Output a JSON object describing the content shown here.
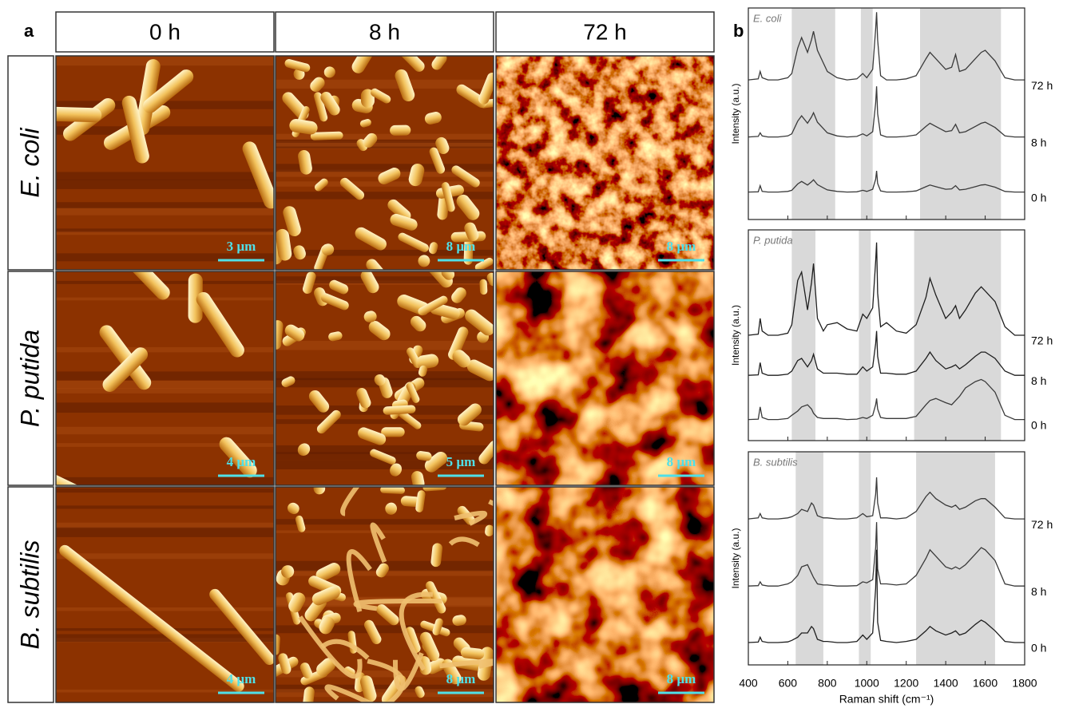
{
  "panel_a": {
    "label": "a",
    "columns": [
      "0 h",
      "8 h",
      "72 h"
    ],
    "rows": [
      {
        "name": "E. coli",
        "scale_bars": [
          "3 µm",
          "8 µm",
          "8 µm"
        ]
      },
      {
        "name": "P. putida",
        "scale_bars": [
          "4 µm",
          "5 µm",
          "8 µm"
        ]
      },
      {
        "name": "B. subtilis",
        "scale_bars": [
          "4 µm",
          "8 µm",
          "8 µm"
        ]
      }
    ]
  },
  "panel_b_label": "b",
  "chart_data": [
    {
      "type": "line",
      "title": "E. coli",
      "ylabel": "Intensity (a.u.)",
      "x": [
        400,
        450,
        460,
        470,
        500,
        550,
        600,
        620,
        650,
        670,
        700,
        720,
        730,
        750,
        780,
        800,
        850,
        900,
        950,
        980,
        1000,
        1030,
        1045,
        1050,
        1055,
        1070,
        1100,
        1150,
        1200,
        1250,
        1300,
        1320,
        1350,
        1400,
        1430,
        1450,
        1470,
        1500,
        1550,
        1580,
        1600,
        1650,
        1700,
        1750,
        1800
      ],
      "xlim": [
        400,
        1800
      ],
      "xticks": [
        400,
        600,
        800,
        1000,
        1200,
        1400,
        1600,
        1800
      ],
      "xtick_labels": false,
      "ylim": [
        0,
        10
      ],
      "shaded_ranges": [
        [
          620,
          840
        ],
        [
          970,
          1030
        ],
        [
          1270,
          1680
        ]
      ],
      "series": [
        {
          "name": "72 h",
          "color": "#3a3a3a",
          "values": [
            6.6,
            6.65,
            7.0,
            6.7,
            6.6,
            6.6,
            6.7,
            6.9,
            8.1,
            8.6,
            7.9,
            8.5,
            8.9,
            8.0,
            7.4,
            7.0,
            6.7,
            6.6,
            6.65,
            6.9,
            6.7,
            7.1,
            9.0,
            9.8,
            8.5,
            6.8,
            6.6,
            6.6,
            6.65,
            6.8,
            7.6,
            7.9,
            7.6,
            7.1,
            7.2,
            7.8,
            7.0,
            7.1,
            7.6,
            7.9,
            8.0,
            7.5,
            6.7,
            6.6,
            6.6
          ]
        },
        {
          "name": "8 h",
          "color": "#3a3a3a",
          "values": [
            3.9,
            3.93,
            4.1,
            3.95,
            3.9,
            3.9,
            3.95,
            4.05,
            4.65,
            4.9,
            4.55,
            4.85,
            5.05,
            4.6,
            4.3,
            4.1,
            3.95,
            3.9,
            3.93,
            4.05,
            3.95,
            4.15,
            5.5,
            6.3,
            5.0,
            4.0,
            3.9,
            3.9,
            3.93,
            4.0,
            4.4,
            4.55,
            4.4,
            4.15,
            4.2,
            4.5,
            4.1,
            4.15,
            4.4,
            4.55,
            4.6,
            4.35,
            3.95,
            3.9,
            3.9
          ]
        },
        {
          "name": "0 h",
          "color": "#3a3a3a",
          "values": [
            1.3,
            1.31,
            1.6,
            1.33,
            1.3,
            1.3,
            1.33,
            1.38,
            1.68,
            1.8,
            1.63,
            1.78,
            1.88,
            1.65,
            1.5,
            1.4,
            1.33,
            1.3,
            1.31,
            1.38,
            1.33,
            1.43,
            1.9,
            2.3,
            1.7,
            1.35,
            1.3,
            1.3,
            1.31,
            1.35,
            1.55,
            1.63,
            1.55,
            1.43,
            1.45,
            1.6,
            1.4,
            1.43,
            1.55,
            1.63,
            1.65,
            1.53,
            1.33,
            1.3,
            1.3
          ]
        }
      ]
    },
    {
      "type": "line",
      "title": "P. putida",
      "ylabel": "Intensity (a.u.)",
      "x": [
        400,
        450,
        460,
        470,
        500,
        550,
        600,
        620,
        650,
        670,
        700,
        720,
        730,
        750,
        780,
        800,
        850,
        900,
        950,
        980,
        1000,
        1030,
        1045,
        1050,
        1055,
        1070,
        1100,
        1150,
        1200,
        1250,
        1300,
        1320,
        1350,
        1400,
        1430,
        1450,
        1470,
        1500,
        1550,
        1580,
        1600,
        1650,
        1700,
        1750,
        1800
      ],
      "xlim": [
        400,
        1800
      ],
      "xticks": [
        400,
        600,
        800,
        1000,
        1200,
        1400,
        1600,
        1800
      ],
      "xtick_labels": false,
      "ylim": [
        0,
        10
      ],
      "shaded_ranges": [
        [
          620,
          740
        ],
        [
          960,
          1020
        ],
        [
          1240,
          1680
        ]
      ],
      "series": [
        {
          "name": "72 h",
          "color": "#1e1e1e",
          "values": [
            5.0,
            5.05,
            5.8,
            5.2,
            5.0,
            5.0,
            5.1,
            5.5,
            7.6,
            8.0,
            6.2,
            7.5,
            8.4,
            5.8,
            5.2,
            5.5,
            5.6,
            5.3,
            5.2,
            6.0,
            5.8,
            6.3,
            8.5,
            9.4,
            7.0,
            5.4,
            5.6,
            5.2,
            5.1,
            5.5,
            6.8,
            7.7,
            6.9,
            5.8,
            6.1,
            6.4,
            5.8,
            6.2,
            7.0,
            7.3,
            7.1,
            6.6,
            5.4,
            5.0,
            5.0
          ]
        },
        {
          "name": "8 h",
          "color": "#1e1e1e",
          "values": [
            3.1,
            3.12,
            3.7,
            3.2,
            3.1,
            3.1,
            3.15,
            3.3,
            3.8,
            3.9,
            3.5,
            3.8,
            4.1,
            3.4,
            3.2,
            3.2,
            3.2,
            3.15,
            3.15,
            3.5,
            3.3,
            3.5,
            4.6,
            5.2,
            4.0,
            3.2,
            3.2,
            3.15,
            3.15,
            3.3,
            3.9,
            4.2,
            3.8,
            3.4,
            3.5,
            3.6,
            3.4,
            3.6,
            4.0,
            4.2,
            4.2,
            3.9,
            3.3,
            3.1,
            3.1
          ]
        },
        {
          "name": "0 h",
          "color": "#3a3a3a",
          "values": [
            1.0,
            1.02,
            1.6,
            1.1,
            1.0,
            1.0,
            1.05,
            1.2,
            1.4,
            1.6,
            1.7,
            1.5,
            1.3,
            1.1,
            1.05,
            1.05,
            1.05,
            1.0,
            1.02,
            1.1,
            1.05,
            1.2,
            1.7,
            2.0,
            1.5,
            1.1,
            1.05,
            1.05,
            1.05,
            1.15,
            1.7,
            1.9,
            2.0,
            1.8,
            1.7,
            1.9,
            2.1,
            2.5,
            2.8,
            2.9,
            2.8,
            2.3,
            1.2,
            1.0,
            1.0
          ]
        }
      ]
    },
    {
      "type": "line",
      "title": "B. subtilis",
      "ylabel": "Intensity (a.u.)",
      "xlabel": "Raman shift (cm⁻¹)",
      "x": [
        400,
        450,
        460,
        470,
        500,
        550,
        600,
        620,
        650,
        670,
        700,
        720,
        730,
        750,
        780,
        800,
        850,
        900,
        950,
        980,
        1000,
        1030,
        1045,
        1050,
        1055,
        1070,
        1100,
        1150,
        1200,
        1250,
        1300,
        1320,
        1350,
        1400,
        1430,
        1450,
        1470,
        1500,
        1550,
        1580,
        1600,
        1650,
        1700,
        1750,
        1800
      ],
      "xlim": [
        400,
        1800
      ],
      "xticks": [
        400,
        600,
        800,
        1000,
        1200,
        1400,
        1600,
        1800
      ],
      "xtick_labels": true,
      "ylim": [
        0,
        10
      ],
      "shaded_ranges": [
        [
          640,
          780
        ],
        [
          960,
          1020
        ],
        [
          1250,
          1650
        ]
      ],
      "series": [
        {
          "name": "72 h",
          "color": "#3a3a3a",
          "values": [
            6.85,
            6.9,
            7.1,
            6.9,
            6.85,
            6.85,
            6.9,
            6.95,
            7.1,
            7.3,
            7.2,
            7.6,
            7.5,
            7.0,
            6.9,
            6.9,
            6.85,
            6.85,
            6.9,
            7.1,
            6.95,
            7.0,
            8.0,
            8.8,
            7.6,
            6.9,
            6.9,
            6.85,
            6.9,
            7.2,
            7.9,
            8.1,
            7.8,
            7.5,
            7.4,
            7.5,
            7.3,
            7.4,
            7.7,
            7.8,
            7.8,
            7.4,
            6.9,
            6.85,
            6.85
          ]
        },
        {
          "name": "8 h",
          "color": "#3a3a3a",
          "values": [
            3.7,
            3.72,
            3.9,
            3.75,
            3.7,
            3.7,
            3.8,
            3.9,
            4.2,
            4.6,
            4.7,
            4.3,
            4.1,
            3.8,
            3.75,
            3.75,
            3.7,
            3.7,
            3.72,
            3.9,
            3.85,
            4.0,
            5.5,
            6.7,
            4.5,
            3.8,
            3.8,
            3.75,
            3.8,
            4.2,
            5.0,
            5.4,
            5.1,
            4.6,
            4.5,
            4.6,
            4.5,
            4.7,
            5.2,
            5.5,
            5.4,
            4.9,
            3.8,
            3.7,
            3.7
          ]
        },
        {
          "name": "0 h",
          "color": "#1e1e1e",
          "values": [
            1.05,
            1.07,
            1.3,
            1.1,
            1.05,
            1.05,
            1.08,
            1.15,
            1.3,
            1.5,
            1.5,
            1.8,
            1.7,
            1.2,
            1.1,
            1.1,
            1.05,
            1.05,
            1.1,
            1.4,
            1.2,
            1.5,
            3.6,
            5.4,
            2.0,
            1.15,
            1.1,
            1.05,
            1.1,
            1.2,
            1.6,
            1.8,
            1.6,
            1.4,
            1.5,
            1.6,
            1.4,
            1.5,
            1.9,
            2.1,
            2.0,
            1.6,
            1.1,
            1.05,
            1.05
          ]
        }
      ]
    }
  ]
}
